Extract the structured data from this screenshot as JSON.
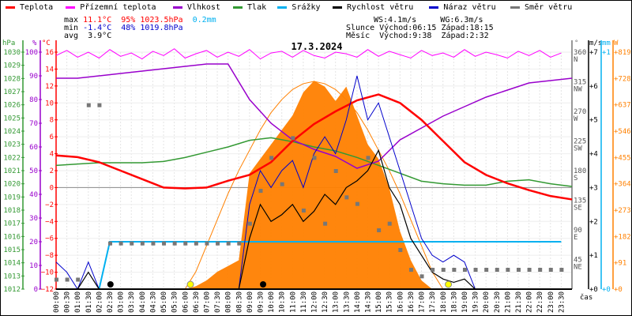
{
  "legend": [
    {
      "label": "Teplota",
      "color": "#ff0000"
    },
    {
      "label": "Přízemní teplota",
      "color": "#ff00ff"
    },
    {
      "label": "Vlhkost",
      "color": "#9900cc"
    },
    {
      "label": "Tlak",
      "color": "#339933"
    },
    {
      "label": "Srážky",
      "color": "#00b0f0"
    },
    {
      "label": "Rychlost větru",
      "color": "#000000"
    },
    {
      "label": "Náraz větru",
      "color": "#0000cc"
    },
    {
      "label": "Směr větru",
      "color": "#777777"
    }
  ],
  "stats": {
    "max_label": "max",
    "max_temp": "11.1°C",
    "max_hum": "95%",
    "max_press": "1023.5hPa",
    "rain": "0.2mm",
    "min_label": "min",
    "min_temp": "-1.4°C",
    "min_hum": "48%",
    "min_press": "1019.8hPa",
    "avg_label": "avg",
    "avg_temp": "3.9°C",
    "ws": "WS:4.1m/s",
    "wg": "WG:6.3m/s",
    "sun_label": "Slunce",
    "sunrise": "Východ:06:15",
    "sunset": "Západ:18:15",
    "moon_label": "Měsíc",
    "moonrise": "Východ:9:38",
    "moonset": "Západ:2:32"
  },
  "chart_data": {
    "type": "line",
    "title": "17.3.2024",
    "xlabel": "čas",
    "x_ticks": [
      "00:00",
      "00:30",
      "01:00",
      "01:30",
      "02:00",
      "02:30",
      "03:00",
      "03:30",
      "04:00",
      "04:30",
      "05:00",
      "05:30",
      "06:00",
      "06:30",
      "07:00",
      "07:30",
      "08:00",
      "08:30",
      "09:00",
      "09:30",
      "10:00",
      "10:30",
      "11:00",
      "11:30",
      "12:00",
      "12:30",
      "13:00",
      "13:30",
      "14:00",
      "14:30",
      "15:00",
      "15:30",
      "16:00",
      "16:30",
      "17:00",
      "17:30",
      "18:00",
      "18:30",
      "19:00",
      "19:30",
      "20:00",
      "20:30",
      "21:00",
      "21:30",
      "22:00",
      "22:30",
      "23:00",
      "23:30"
    ],
    "axes": {
      "pressure": {
        "unit": "hPa",
        "range": [
          1012,
          1030
        ],
        "ticks": [
          1012,
          1013,
          1014,
          1015,
          1016,
          1017,
          1018,
          1019,
          1020,
          1021,
          1022,
          1023,
          1024,
          1025,
          1026,
          1027,
          1028,
          1029,
          1030
        ],
        "color": "#339933"
      },
      "humidity": {
        "unit": "%",
        "range": [
          0,
          100
        ],
        "ticks": [
          0,
          10,
          20,
          30,
          40,
          50,
          60,
          70,
          80,
          90,
          100
        ],
        "color": "#9900cc"
      },
      "temperature": {
        "unit": "°C",
        "range": [
          -12,
          16
        ],
        "ticks": [
          -12,
          -10,
          -8,
          -6,
          -4,
          -2,
          0,
          2,
          4,
          6,
          8,
          10,
          12,
          14,
          16
        ],
        "color": "#ff0000"
      },
      "direction": {
        "unit": "°",
        "range": [
          0,
          360
        ],
        "ticks": [
          {
            "v": 45,
            "l": "45",
            "d": "NE"
          },
          {
            "v": 90,
            "l": "90",
            "d": "E"
          },
          {
            "v": 135,
            "l": "135",
            "d": "SE"
          },
          {
            "v": 180,
            "l": "180",
            "d": "S"
          },
          {
            "v": 225,
            "l": "225",
            "d": "SW"
          },
          {
            "v": 270,
            "l": "270",
            "d": "W"
          },
          {
            "v": 315,
            "l": "315",
            "d": "NW"
          },
          {
            "v": 360,
            "l": "360",
            "d": "N"
          }
        ],
        "color": "#777777"
      },
      "wind": {
        "unit": "m/s",
        "range": [
          0,
          7
        ],
        "ticks": [
          0,
          1,
          2,
          3,
          4,
          5,
          6,
          7
        ],
        "color": "#000000"
      },
      "rain": {
        "unit": "mm",
        "range": [
          0,
          1
        ],
        "ticks": [
          0,
          1
        ],
        "color": "#00b0f0"
      },
      "radiation": {
        "unit": "W",
        "range": [
          0,
          819
        ],
        "ticks": [
          0,
          91,
          182,
          273,
          364,
          455,
          546,
          637,
          728,
          819
        ],
        "color": "#ff8000"
      }
    },
    "hours_hourly": [
      0,
      1,
      2,
      3,
      4,
      5,
      6,
      7,
      8,
      9,
      10,
      11,
      12,
      13,
      14,
      15,
      16,
      17,
      18,
      19,
      20,
      21,
      22,
      23,
      24
    ],
    "series": [
      {
        "name": "Teplota",
        "axis": "temperature",
        "values": [
          3.8,
          3.6,
          3.0,
          2.0,
          1.0,
          0.0,
          -0.1,
          0.0,
          0.8,
          1.5,
          3.0,
          5.5,
          7.5,
          9.0,
          10.3,
          11.0,
          10.0,
          8.0,
          5.5,
          3.0,
          1.5,
          0.5,
          -0.3,
          -1.0,
          -1.4
        ]
      },
      {
        "name": "Vlhkost",
        "axis": "humidity",
        "values": [
          89,
          89,
          90,
          91,
          92,
          93,
          94,
          95,
          95,
          80,
          70,
          63,
          59,
          56,
          51,
          54,
          63,
          68,
          73,
          77,
          81,
          84,
          87,
          88,
          89
        ]
      },
      {
        "name": "Tlak",
        "axis": "pressure",
        "values": [
          1021.4,
          1021.5,
          1021.6,
          1021.6,
          1021.6,
          1021.7,
          1022.0,
          1022.4,
          1022.8,
          1023.3,
          1023.5,
          1023.2,
          1022.8,
          1022.5,
          1022.0,
          1021.4,
          1020.8,
          1020.2,
          1020.0,
          1019.9,
          1019.9,
          1020.2,
          1020.3,
          1020.0,
          1019.8
        ]
      },
      {
        "name": "Přízemní teplota",
        "axis": "temperature",
        "half_hourly": true,
        "values": [
          15.6,
          16.2,
          15.4,
          16.0,
          15.3,
          16.3,
          15.5,
          15.9,
          15.2,
          16.1,
          15.6,
          16.4,
          15.3,
          15.8,
          16.2,
          15.4,
          16.0,
          15.5,
          16.3,
          15.2,
          15.9,
          16.1,
          15.4,
          16.2,
          15.6,
          15.3,
          16.0,
          15.8,
          15.4,
          16.3,
          15.5,
          16.1,
          15.7,
          15.3,
          16.2,
          15.6,
          15.9,
          15.4,
          16.3,
          15.5,
          16.0,
          15.7,
          15.3,
          16.1,
          15.6,
          16.2,
          15.4,
          15.9
        ]
      },
      {
        "name": "Rychlost větru",
        "axis": "wind",
        "half_hourly": true,
        "values": [
          0,
          0,
          0,
          0.5,
          0,
          0,
          0,
          0,
          0,
          0,
          0,
          0,
          0,
          0,
          0,
          0,
          0,
          0,
          1.5,
          2.5,
          2.0,
          2.2,
          2.5,
          2.0,
          2.3,
          2.8,
          2.5,
          3.0,
          3.2,
          3.5,
          4.1,
          3.0,
          2.5,
          1.5,
          1.0,
          0.5,
          0.3,
          0.2,
          0.3,
          0,
          0,
          0,
          0,
          0,
          0,
          0,
          0,
          0
        ]
      },
      {
        "name": "Náraz větru",
        "axis": "wind",
        "half_hourly": true,
        "values": [
          0.8,
          0.5,
          0,
          0.8,
          0,
          0,
          0,
          0,
          0,
          0,
          0,
          0,
          0,
          0,
          0,
          0,
          0,
          0,
          2.5,
          3.5,
          3.0,
          3.5,
          3.8,
          3.0,
          4.0,
          4.5,
          4.0,
          5.0,
          6.3,
          5.0,
          5.5,
          4.5,
          3.5,
          2.5,
          1.5,
          1.0,
          0.8,
          1.0,
          0.8,
          0,
          0,
          0,
          0,
          0,
          0,
          0,
          0,
          0
        ]
      },
      {
        "name": "Směr větru",
        "axis": "direction",
        "half_hourly": true,
        "values": [
          15,
          15,
          15,
          280,
          280,
          70,
          70,
          70,
          70,
          70,
          70,
          70,
          70,
          70,
          70,
          70,
          70,
          70,
          100,
          150,
          200,
          160,
          230,
          120,
          200,
          100,
          180,
          140,
          130,
          200,
          90,
          100,
          60,
          30,
          20,
          30,
          30,
          30,
          30,
          30,
          30,
          30,
          30,
          30,
          30,
          30,
          30,
          30
        ]
      },
      {
        "name": "Srážky",
        "axis": "rain",
        "half_hourly": true,
        "values": [
          0,
          0,
          0,
          0,
          0,
          0.2,
          0.2,
          0.2,
          0.2,
          0.2,
          0.2,
          0.2,
          0.2,
          0.2,
          0.2,
          0.2,
          0.2,
          0.2,
          0.2,
          0.2,
          0.2,
          0.2,
          0.2,
          0.2,
          0.2,
          0.2,
          0.2,
          0.2,
          0.2,
          0.2,
          0.2,
          0.2,
          0.2,
          0.2,
          0.2,
          0.2,
          0.2,
          0.2,
          0.2,
          0.2,
          0.2,
          0.2,
          0.2,
          0.2,
          0.2,
          0.2,
          0.2,
          0.2
        ]
      },
      {
        "axis": "radiation",
        "half_hourly": true,
        "values": [
          0,
          0,
          0,
          0,
          0,
          0,
          0,
          0,
          0,
          0,
          0,
          0,
          0,
          10,
          30,
          60,
          80,
          100,
          400,
          450,
          500,
          550,
          600,
          680,
          720,
          700,
          650,
          700,
          600,
          500,
          450,
          350,
          200,
          100,
          30,
          0,
          0,
          0,
          0,
          0,
          0,
          0,
          0,
          0,
          0,
          0,
          0,
          0
        ]
      },
      {
        "axis": "radiation",
        "half_hourly": true,
        "values": [
          0,
          0,
          0,
          0,
          0,
          0,
          0,
          0,
          0,
          0,
          0,
          0,
          0,
          60,
          150,
          240,
          330,
          410,
          480,
          550,
          610,
          655,
          690,
          710,
          718,
          710,
          690,
          655,
          610,
          550,
          480,
          410,
          330,
          240,
          150,
          60,
          0,
          0,
          0,
          0,
          0,
          0,
          0,
          0,
          0,
          0,
          0,
          0
        ]
      }
    ],
    "markers": {
      "sunrise": 6.25,
      "sunset": 18.25,
      "moonset": 2.53,
      "moonrise": 9.63
    }
  }
}
